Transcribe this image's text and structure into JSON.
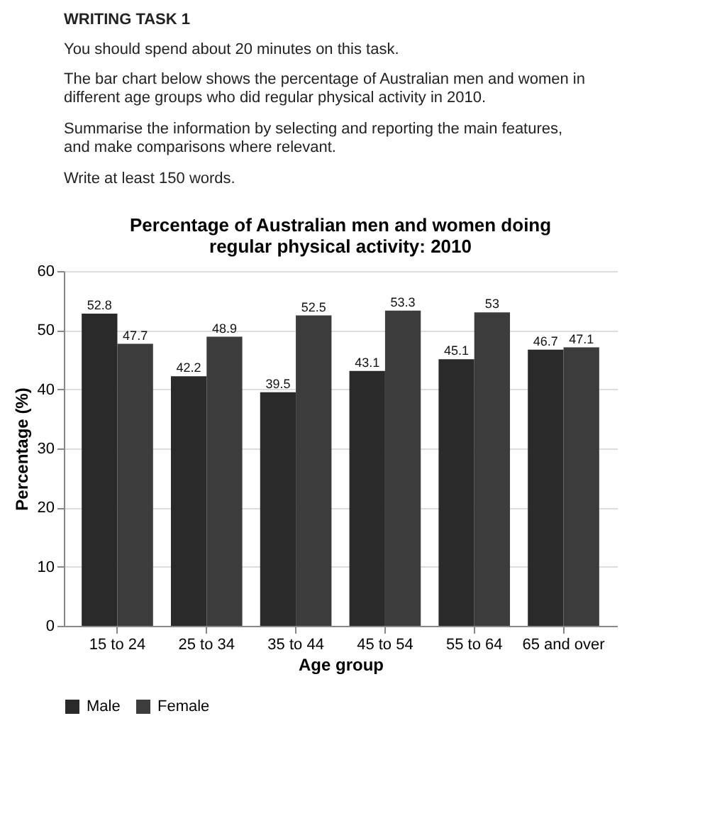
{
  "chart_data": {
    "type": "bar",
    "title": "Percentage of Australian men and women doing regular physical activity: 2010",
    "xlabel": "Age group",
    "ylabel": "Percentage (%)",
    "categories": [
      "15 to 24",
      "25 to 34",
      "35 to 44",
      "45 to 54",
      "55 to 64",
      "65 and over"
    ],
    "series": [
      {
        "name": "Male",
        "color": "#2a2a2a",
        "values": [
          52.8,
          42.2,
          39.5,
          43.1,
          45.1,
          46.7
        ]
      },
      {
        "name": "Female",
        "color": "#3c3c3c",
        "values": [
          47.7,
          48.9,
          52.5,
          53.3,
          53,
          47.1
        ]
      }
    ],
    "ylim": [
      0,
      60
    ],
    "yticks": [
      0,
      10,
      20,
      30,
      40,
      50,
      60
    ],
    "grid": "y",
    "legend": "bottom",
    "data_labels": true,
    "annotations": [
      "WRITING TASK 1",
      "You should spend about 20 minutes on this task.",
      "The bar chart below shows the percentage of Australian men and women in different age groups who did regular physical activity in 2010.",
      "Summarise the information by selecting and reporting the main features, and make comparisons where relevant.",
      "Write at least 150 words."
    ]
  }
}
